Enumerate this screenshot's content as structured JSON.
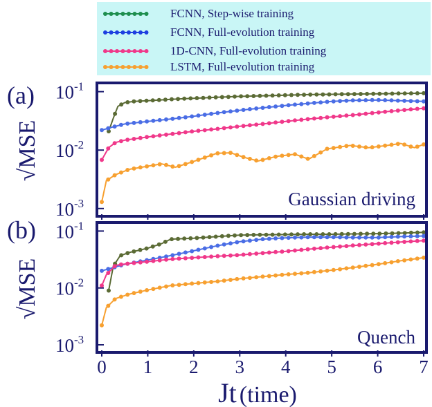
{
  "legend": {
    "background": "#c9f6f6",
    "entries": [
      {
        "label": "FCNN, Step-wise training",
        "color": "#1e8e4e"
      },
      {
        "label": "FCNN, Full-evolution training",
        "color": "#1f3fe0"
      },
      {
        "label": "1D-CNN, Full-evolution training",
        "color": "#f0388a"
      },
      {
        "label": "LSTM, Full-evolution training",
        "color": "#f7a030"
      }
    ]
  },
  "axes": {
    "ylabel": "√MSE",
    "xlabel_main": "Jt",
    "xlabel_paren": "(time)",
    "frame_color": "#1a1a6e",
    "x_ticks": [
      "0",
      "1",
      "2",
      "3",
      "4",
      "5",
      "6",
      "7"
    ],
    "y_tick_base": "10",
    "y_tick_exps": [
      "-1",
      "-2",
      "-3"
    ]
  },
  "chart_data": [
    {
      "type": "line",
      "panel": "(a)",
      "annotation": "Gaussian driving",
      "x_range": [
        0,
        7
      ],
      "y_range": [
        0.0008,
        0.13
      ],
      "y_scale": "log",
      "series": [
        {
          "color": "#5b6b35",
          "x": [
            0.15,
            0.25,
            0.35,
            0.5,
            0.7,
            1,
            1.5,
            2,
            2.5,
            3,
            3.5,
            4,
            4.5,
            5,
            5.5,
            6,
            6.5,
            7
          ],
          "y": [
            0.021,
            0.035,
            0.056,
            0.065,
            0.068,
            0.07,
            0.074,
            0.077,
            0.08,
            0.083,
            0.085,
            0.087,
            0.089,
            0.09,
            0.091,
            0.092,
            0.093,
            0.094
          ]
        },
        {
          "color": "#4a6de5",
          "x": [
            0,
            0.25,
            0.5,
            1,
            1.5,
            2,
            2.5,
            3,
            3.5,
            4,
            4.5,
            5,
            5.5,
            6,
            6.5,
            7
          ],
          "y": [
            0.022,
            0.025,
            0.028,
            0.031,
            0.034,
            0.038,
            0.043,
            0.048,
            0.053,
            0.058,
            0.063,
            0.068,
            0.071,
            0.072,
            0.07,
            0.068
          ]
        },
        {
          "color": "#f0388a",
          "x": [
            0,
            0.15,
            0.3,
            0.5,
            1,
            1.5,
            2,
            2.5,
            3,
            3.5,
            4,
            4.5,
            5,
            5.5,
            6,
            6.5,
            7
          ],
          "y": [
            0.0068,
            0.011,
            0.0135,
            0.0148,
            0.0168,
            0.0188,
            0.021,
            0.023,
            0.0255,
            0.028,
            0.031,
            0.034,
            0.037,
            0.04,
            0.044,
            0.048,
            0.052
          ]
        },
        {
          "color": "#f7a030",
          "x": [
            0,
            0.1,
            0.3,
            0.6,
            1,
            1.3,
            1.6,
            2,
            2.5,
            2.8,
            3.1,
            3.4,
            3.8,
            4.2,
            4.5,
            4.9,
            5.4,
            5.8,
            6.2,
            6.5,
            6.8,
            7
          ],
          "y": [
            0.0013,
            0.003,
            0.0038,
            0.0047,
            0.0053,
            0.0058,
            0.0051,
            0.0064,
            0.0088,
            0.009,
            0.0075,
            0.0065,
            0.0078,
            0.0085,
            0.007,
            0.0105,
            0.012,
            0.011,
            0.012,
            0.013,
            0.011,
            0.0125
          ]
        }
      ]
    },
    {
      "type": "line",
      "panel": "(b)",
      "annotation": "Quench",
      "x_range": [
        0,
        7
      ],
      "y_range": [
        0.0008,
        0.13
      ],
      "y_scale": "log",
      "series": [
        {
          "color": "#5b6b35",
          "x": [
            0.15,
            0.25,
            0.4,
            0.6,
            1,
            1.3,
            1.5,
            2,
            2.5,
            3,
            3.5,
            4,
            4.5,
            5,
            5.5,
            6,
            6.5,
            7
          ],
          "y": [
            0.009,
            0.024,
            0.037,
            0.042,
            0.05,
            0.06,
            0.072,
            0.075,
            0.08,
            0.085,
            0.086,
            0.087,
            0.088,
            0.088,
            0.089,
            0.09,
            0.092,
            0.095
          ]
        },
        {
          "color": "#4a6de5",
          "x": [
            0,
            0.5,
            1,
            1.5,
            2,
            2.5,
            3,
            3.5,
            4,
            4.5,
            5,
            5.5,
            6,
            6.5,
            7
          ],
          "y": [
            0.02,
            0.026,
            0.031,
            0.037,
            0.045,
            0.055,
            0.065,
            0.072,
            0.076,
            0.078,
            0.078,
            0.077,
            0.077,
            0.08,
            0.082
          ]
        },
        {
          "color": "#f0388a",
          "x": [
            0,
            0.1,
            0.3,
            0.6,
            1,
            1.5,
            2,
            2.5,
            3,
            3.5,
            4,
            4.5,
            5,
            5.5,
            6,
            6.5,
            7
          ],
          "y": [
            0.011,
            0.017,
            0.025,
            0.027,
            0.029,
            0.032,
            0.034,
            0.036,
            0.038,
            0.041,
            0.044,
            0.048,
            0.052,
            0.056,
            0.06,
            0.064,
            0.068
          ]
        },
        {
          "color": "#f7a030",
          "x": [
            0,
            0.1,
            0.3,
            0.6,
            1,
            1.5,
            2,
            2.5,
            3,
            3.5,
            4,
            4.5,
            5,
            5.5,
            6,
            6.5,
            7
          ],
          "y": [
            0.0022,
            0.0045,
            0.0065,
            0.0078,
            0.0092,
            0.011,
            0.012,
            0.013,
            0.0145,
            0.0158,
            0.0172,
            0.0185,
            0.0205,
            0.023,
            0.026,
            0.03,
            0.034
          ]
        }
      ]
    }
  ]
}
